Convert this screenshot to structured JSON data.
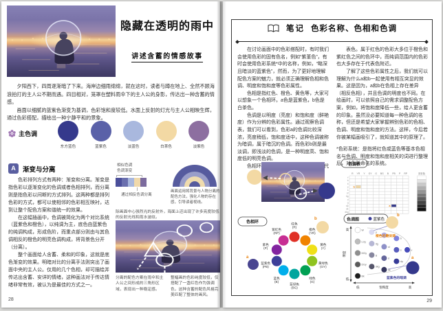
{
  "left_page": {
    "page_number": "28",
    "title": "隐藏在透明的雨中",
    "subtitle": "讲述含蓄的情感故事",
    "intro": [
      "夕阳西下，四周逐渐暗了下来。海岸边细雨绵绵，就在这时，读者与蹲在地上、全然不顾海浪拍打的主人公不期而遇。四目相对，笼罩在塑料雨伞下的主人公的身影，传达出一种含蓄的情感。",
      "画面以细腻的蓝紫色渐变为基调，色彩饱和度较低。水面上反射的灯光与主人公相映生辉，通过色彩搭配，描绘出一种宁静平和的景象。"
    ],
    "palette": {
      "label": "主色调",
      "colors": [
        {
          "name": "东方蓝色",
          "hex": "#35398c"
        },
        {
          "name": "蓝紫色",
          "hex": "#5a61a8"
        },
        {
          "name": "淡蓝色",
          "hex": "#a9b8de"
        },
        {
          "name": "白茶色",
          "hex": "#f3d9a4"
        },
        {
          "name": "淡紫色",
          "hex": "#8d6fa0"
        }
      ]
    },
    "section": {
      "badge": "A",
      "title": "渐变与分离",
      "paragraphs": [
        "色彩排列方式有两种：渐变和分离。渐变是指色彩以逐渐变化的色调或者色相排列，而分离则是指色彩以间断的方式排列。这两种都是排列色彩的方式，都可以使相邻的色彩相互映衬，达到让整个配色方案和谐统一的效果。",
        "在这幅插画中，色调被简化为两个对比系统（蓝紫色和橙色），以纯调为主，底色由蓝紫色的纯调构成，形成色阶，而重点部分则由与其色调相反的橙色的明亮色调构成，将背景色分开（分离）。",
        "整个画面给人含蓄、柔和的印象，这就是底色渐变的效果。明暗对比的分离手法则突出了画面中央的主人公。仅用的几个色相，却可描绘并传达出含蓄、安详的情绪，这种画法对于传达情绪非常有效，被认为是最佳的方式之一。"
      ]
    },
    "figures": {
      "strip": {
        "top_labels": [
          "相似色调",
          "色调渐变"
        ],
        "bottom_label": "通过相反色调分离",
        "colors": [
          "#4b4f9a",
          "#6a6fae",
          "#a9b8de",
          "#f0d9ab",
          "#7c6b9e"
        ]
      },
      "arc_caption": "画面运用将背景与人物分离的配色方法，强化人物的存在感，引导读者视线。",
      "photo_caption": "除画面中心强烈光的反射外，海面上还出现了许多亮度较低的反射光线和雨水波纹。",
      "caption_left": "分离的配色方案在雨伞和主人公之间形成的三角形区域，表现出一种稳定感。",
      "caption_right": "整幅画的色彩纯度较低，仅搭配了一盏红色作为强调色，这种含蓄的配色风格完美匹配了整体的画风。"
    }
  },
  "right_page": {
    "page_number": "29",
    "header": {
      "badge": "笔记",
      "title": "色彩名称、色相和色调"
    },
    "col1": [
      "在讨论画面中的色彩搭配时，有时我们会使用色彩的固有色名，例如“紫堇色”，有时会使用色彩系统*中的名称，例如，“略深且暗淡的蓝紫色”，然而，为了更好地理解配色方案的魅力，就必须正确理解色相和色调、明度和饱和度等色彩属性。",
      "色相是指红色、橙色、黄色等，大家可以想象一个色相环。a色是蓝紫色，b色是白茶色。",
      "色调是以明度（亮度）和饱和度（鲜艳度）作为分辨的色彩属性。通过观察色调表，我们可以看到，色彩a的色调比较深浓，亮度稍低，饱和度适中，这种色调被称为暗调，属于暗沉的色调。而色彩b则是最淡调，即浅淡的色调，是一种明度高、饱和度低的明亮色调。",
      "色相环和色调图中的色彩选取了一些代"
    ],
    "col2": [
      "表色。属于红色的色彩大多位于橙色和紫红色之间的色环中，而纯调范围内的色彩也大多存在于代表色附近。",
      "了解了这些色彩属性之后，我们就可以理解为什么a和b一起使用有相互突显的效果。这是因为，a和b在色相上存在差异（相反色相），并且色调的明度也不同。在绘画时，可以依照自己的需求调整配色方案，例如，将饱和度降低一些，给人更含蓄的印象。虽然没必要知道每一种色调的名称，但还是希望大家掌握辨别色彩的色相、色调、明度和饱和度的方法。这样，今后若你被某幅画吸引了，就知道其中的原理了。"
    ],
    "footnote": "*色彩系统：是指将红色或蓝色等基本色相名与色调、明度和饱和度相关的词进行整理后，对色彩命名的系统。",
    "tone_table": {
      "label": "色调表",
      "columns": [
        "R",
        "YR",
        "Y",
        "GY",
        "G",
        "BG",
        "B",
        "PB",
        "P",
        "RP"
      ],
      "rows": [
        "v",
        "b",
        "lt",
        "p",
        "s",
        "sf",
        "ltg",
        "d",
        "g",
        "dp",
        "dk",
        "dkg"
      ],
      "achromatic_label": "无彩色",
      "achromatic_steps": [
        "#ffffff",
        "#e3e3e3",
        "#c9c9c9",
        "#afafaf",
        "#959595",
        "#7a7a7a",
        "#5f5f5f",
        "#444444",
        "#2a2a2a",
        "#101010"
      ],
      "marks": [
        {
          "label": "b",
          "col": 2,
          "row": 4,
          "hex": "#f3d9a4"
        },
        {
          "label": "a",
          "col": 8,
          "row": 10,
          "hex": "#35398c"
        }
      ]
    },
    "hue_wheel": {
      "label": "色相环",
      "hues": [
        {
          "name": "红色",
          "code": "(R)",
          "hex": "#e03127"
        },
        {
          "name": "橙色",
          "code": "(YR)",
          "hex": "#f08300"
        },
        {
          "name": "黄色",
          "code": "(Y)",
          "hex": "#f0e017"
        },
        {
          "name": "黄绿色",
          "code": "(GY)",
          "hex": "#8fc31f"
        },
        {
          "name": "绿色",
          "code": "(G)",
          "hex": "#00a053"
        },
        {
          "name": "蓝绿色",
          "code": "(BG)",
          "hex": "#00a59e"
        },
        {
          "name": "蓝色",
          "code": "(B)",
          "hex": "#00aeeb"
        },
        {
          "name": "蓝紫色",
          "code": "(PB)",
          "hex": "#3c3f99"
        },
        {
          "name": "紫色",
          "code": "(P)",
          "hex": "#8224a0"
        },
        {
          "name": "紫红色",
          "code": "(RP)",
          "hex": "#c72e93"
        }
      ],
      "a_label": "a",
      "a_hex": "#494590",
      "b_label": "b",
      "b_hex": "#f3d9a4"
    },
    "tone_map": {
      "label": "色调图",
      "legend_text": "蓝紫色",
      "legend_hex": "#3c3f99",
      "axis_vertical": "明度",
      "axis_v_high": "高",
      "axis_v_low": "低",
      "axis_horizontal": "饱和度",
      "axis_h_low": "低",
      "axis_h_high": "高",
      "b_label": "b",
      "b_hex": "#f3d9a4",
      "b_caption": "橙色的最淡调",
      "a_label": "a",
      "a_hex": "#35398c",
      "a_caption": "蓝紫色的暗调",
      "points": [
        {
          "label": "W",
          "sat": 0,
          "light": 9.6,
          "hex": "#ffffff"
        },
        {
          "label": "p",
          "sat": 1.7,
          "light": 9.2,
          "hex": "#dadaf2"
        },
        {
          "label": "lt",
          "sat": 3.2,
          "light": 8.6,
          "hex": "#aeb0e9"
        },
        {
          "label": "b",
          "sat": 4.7,
          "light": 8.0,
          "hex": "#7f83de"
        },
        {
          "label": "LGy",
          "sat": 0,
          "light": 7.4,
          "hex": "#bcbcbc"
        },
        {
          "label": "ltg",
          "sat": 1.7,
          "light": 7.0,
          "hex": "#b6b7d4"
        },
        {
          "label": "sf",
          "sat": 3.2,
          "light": 6.4,
          "hex": "#8e91c8"
        },
        {
          "label": "s",
          "sat": 4.7,
          "light": 5.8,
          "hex": "#575cbd"
        },
        {
          "label": "v",
          "sat": 6.0,
          "light": 5.8,
          "hex": "#464bba"
        },
        {
          "label": "MGy",
          "sat": 0,
          "light": 5.2,
          "hex": "#8e8e8e"
        },
        {
          "label": "g",
          "sat": 1.7,
          "light": 4.8,
          "hex": "#87879f"
        },
        {
          "label": "d",
          "sat": 3.2,
          "light": 4.2,
          "hex": "#64669b"
        },
        {
          "label": "dp",
          "sat": 4.7,
          "light": 3.6,
          "hex": "#363a97"
        },
        {
          "label": "DGy",
          "sat": 0,
          "light": 3.0,
          "hex": "#5a5a5a"
        },
        {
          "label": "dkg",
          "sat": 1.7,
          "light": 2.6,
          "hex": "#56566b"
        },
        {
          "label": "dk",
          "sat": 3.2,
          "light": 2.0,
          "hex": "#373860"
        },
        {
          "label": "Bk",
          "sat": 0,
          "light": 0.8,
          "hex": "#1c1c1c"
        }
      ]
    }
  }
}
